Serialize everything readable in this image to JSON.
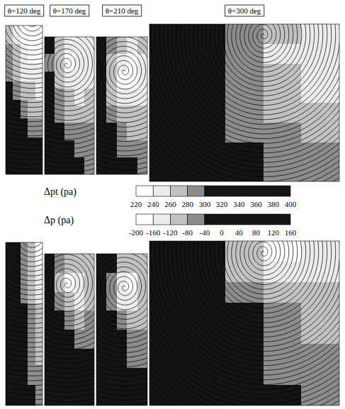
{
  "chart_data": [
    {
      "type": "heatmap",
      "colorbar": {
        "label": "Δpt (pa)",
        "bins": [
          220,
          240,
          260,
          280,
          300,
          400
        ],
        "colors": [
          "#ffffff",
          "#ececec",
          "#c2c2c2",
          "#8c8c8c",
          "#141414"
        ],
        "ticks": [
          220,
          240,
          260,
          280,
          300,
          320,
          340,
          360,
          380,
          400
        ]
      },
      "panels": [
        {
          "title": "θ=120 deg",
          "vortex": [
            0.7,
            -0.05
          ],
          "cells": [
            [
              270,
              250,
              235,
              225,
              222
            ],
            [
              280,
              262,
              245,
              232,
              228
            ],
            [
              292,
              275,
              258,
              245,
              240
            ],
            [
              305,
              288,
              272,
              262,
              255
            ],
            [
              320,
              302,
              285,
              275,
              270
            ],
            [
              335,
              318,
              300,
              290,
              285
            ],
            [
              350,
              332,
              315,
              305,
              300
            ],
            [
              360,
              345,
              330,
              318,
              312
            ]
          ]
        },
        {
          "title": "θ=170 deg",
          "vortex": [
            0.45,
            0.2
          ],
          "cells": [
            [
              300,
              275,
              255,
              250,
              255
            ],
            [
              295,
              265,
              235,
              240,
              250
            ],
            [
              300,
              270,
              245,
              245,
              255
            ],
            [
              310,
              285,
              262,
              258,
              262
            ],
            [
              320,
              298,
              278,
              270,
              272
            ],
            [
              330,
              310,
              292,
              282,
              280
            ],
            [
              340,
              322,
              305,
              292,
              288
            ],
            [
              350,
              335,
              318,
              302,
              295
            ]
          ]
        },
        {
          "title": "θ=210 deg",
          "vortex": [
            0.55,
            0.25
          ],
          "cells": [
            [
              305,
              280,
              262,
              258,
              262
            ],
            [
              300,
              268,
              242,
              238,
              255
            ],
            [
              300,
              265,
              232,
              235,
              252
            ],
            [
              308,
              278,
              250,
              248,
              258
            ],
            [
              318,
              292,
              268,
              262,
              268
            ],
            [
              328,
              305,
              285,
              275,
              278
            ],
            [
              340,
              318,
              298,
              288,
              288
            ],
            [
              352,
              332,
              312,
              300,
              295
            ]
          ]
        },
        {
          "title": "θ=300 deg",
          "vortex": [
            0.6,
            0.07
          ],
          "cells": [
            [
              310,
              300,
              285,
              262,
              245
            ],
            [
              315,
              302,
              280,
              255,
              240
            ],
            [
              320,
              305,
              282,
              262,
              248
            ],
            [
              325,
              310,
              288,
              272,
              258
            ],
            [
              330,
              312,
              292,
              278,
              268
            ],
            [
              335,
              318,
              298,
              282,
              275
            ],
            [
              340,
              322,
              302,
              288,
              280
            ],
            [
              345,
              328,
              305,
              292,
              285
            ]
          ]
        }
      ]
    },
    {
      "type": "heatmap",
      "colorbar": {
        "label": "Δp (pa)",
        "bins": [
          -200,
          -160,
          -120,
          -80,
          -40,
          160
        ],
        "colors": [
          "#ffffff",
          "#ececec",
          "#c2c2c2",
          "#8c8c8c",
          "#141414"
        ],
        "ticks": [
          -200,
          -160,
          -120,
          -80,
          -40,
          0,
          40,
          80,
          120,
          160
        ]
      },
      "panels": [
        {
          "vortex": [
            0.7,
            -0.05
          ],
          "cells": [
            [
              20,
              -20,
              -70,
              -120,
              -170
            ],
            [
              30,
              -10,
              -60,
              -110,
              -150
            ],
            [
              40,
              0,
              -50,
              -95,
              -130
            ],
            [
              50,
              10,
              -40,
              -80,
              -115
            ],
            [
              60,
              20,
              -30,
              -70,
              -100
            ],
            [
              70,
              30,
              -20,
              -60,
              -90
            ],
            [
              80,
              40,
              -10,
              -50,
              -80
            ],
            [
              90,
              50,
              0,
              -40,
              -70
            ]
          ]
        },
        {
          "vortex": [
            0.45,
            0.2
          ],
          "cells": [
            [
              10,
              -60,
              -110,
              -120,
              -100
            ],
            [
              0,
              -90,
              -180,
              -150,
              -110
            ],
            [
              10,
              -60,
              -120,
              -130,
              -100
            ],
            [
              30,
              -20,
              -70,
              -90,
              -80
            ],
            [
              50,
              10,
              -40,
              -60,
              -60
            ],
            [
              70,
              30,
              -10,
              -40,
              -40
            ],
            [
              90,
              50,
              10,
              -20,
              -30
            ],
            [
              110,
              70,
              30,
              0,
              -10
            ]
          ]
        },
        {
          "vortex": [
            0.55,
            0.22
          ],
          "cells": [
            [
              20,
              -40,
              -100,
              -120,
              -100
            ],
            [
              10,
              -70,
              -150,
              -170,
              -120
            ],
            [
              20,
              -50,
              -130,
              -140,
              -110
            ],
            [
              30,
              -10,
              -70,
              -100,
              -90
            ],
            [
              50,
              10,
              -40,
              -70,
              -70
            ],
            [
              70,
              30,
              -10,
              -45,
              -50
            ],
            [
              90,
              50,
              10,
              -20,
              -30
            ],
            [
              110,
              70,
              30,
              0,
              -10
            ]
          ]
        },
        {
          "vortex": [
            0.6,
            0.07
          ],
          "cells": [
            [
              0,
              -40,
              -120,
              -190,
              -150
            ],
            [
              10,
              -30,
              -90,
              -140,
              -130
            ],
            [
              20,
              -10,
              -60,
              -100,
              -110
            ],
            [
              30,
              0,
              -40,
              -80,
              -100
            ],
            [
              40,
              10,
              -25,
              -65,
              -90
            ],
            [
              50,
              20,
              -15,
              -55,
              -80
            ],
            [
              60,
              30,
              -5,
              -45,
              -70
            ],
            [
              70,
              40,
              5,
              -35,
              -60
            ]
          ]
        }
      ]
    }
  ]
}
